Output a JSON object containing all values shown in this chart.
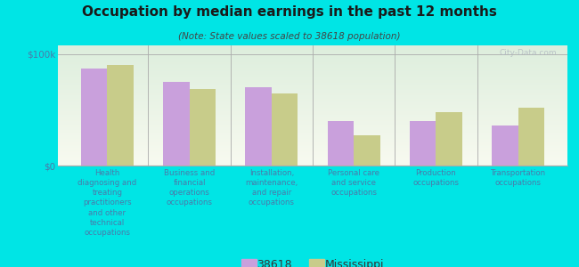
{
  "title": "Occupation by median earnings in the past 12 months",
  "subtitle": "(Note: State values scaled to 38618 population)",
  "categories": [
    "Health\ndiagnosing and\ntreating\npractitioners\nand other\ntechnical\noccupations",
    "Business and\nfinancial\noperations\noccupations",
    "Installation,\nmaintenance,\nand repair\noccupations",
    "Personal care\nand service\noccupations",
    "Production\noccupations",
    "Transportation\noccupations"
  ],
  "values_38618": [
    87000,
    75000,
    70000,
    40000,
    40000,
    36000
  ],
  "values_ms": [
    90000,
    69000,
    65000,
    27000,
    48000,
    52000
  ],
  "color_38618": "#c9a0dc",
  "color_ms": "#c8cc8a",
  "background_outer": "#00e5e5",
  "background_plot_top": "#ddeedd",
  "background_plot_bottom": "#f8faf0",
  "yticks": [
    0,
    100000
  ],
  "ytick_labels": [
    "$0",
    "$100k"
  ],
  "ylim": [
    0,
    108000
  ],
  "legend_label_38618": "38618",
  "legend_label_ms": "Mississippi",
  "watermark": "City-Data.com"
}
